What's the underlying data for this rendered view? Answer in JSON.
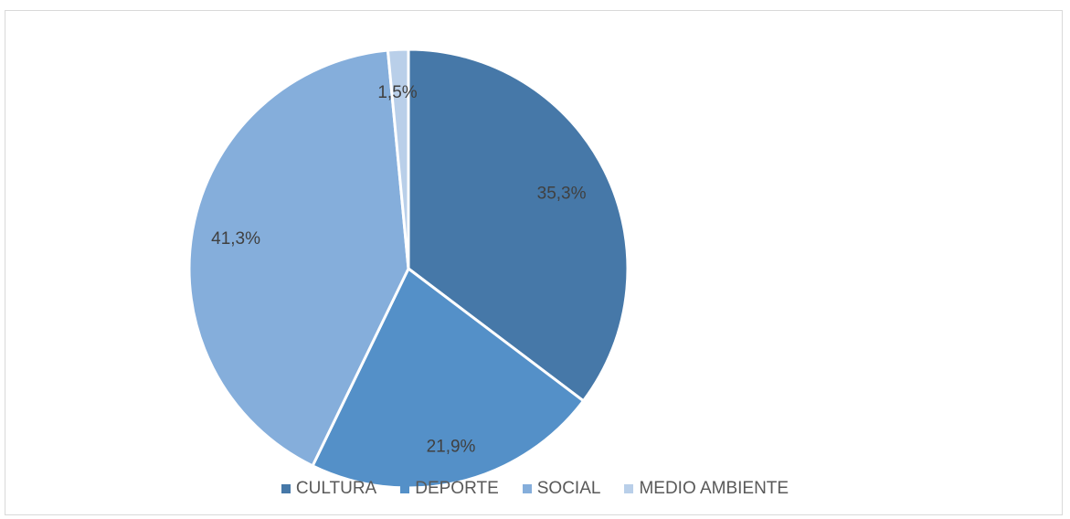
{
  "chart_data": {
    "type": "pie",
    "title": "",
    "categories": [
      "CULTURA",
      "DEPORTE",
      "SOCIAL",
      "MEDIO AMBIENTE"
    ],
    "values": [
      35.3,
      21.9,
      41.3,
      1.5
    ],
    "labels": [
      "35,3%",
      "21,9%",
      "41,3%",
      "1,5%"
    ],
    "colors": [
      "#4678a8",
      "#5490c8",
      "#85aedb",
      "#b9cfe9"
    ],
    "legend_position": "bottom",
    "start_angle": "12 o'clock",
    "direction": "clockwise"
  }
}
